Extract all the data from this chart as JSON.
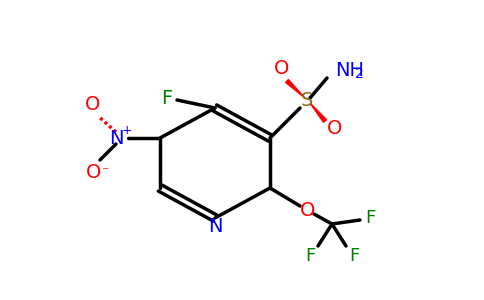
{
  "background_color": "#ffffff",
  "atom_colors": {
    "C": "#000000",
    "N": "#0000ff",
    "O": "#ff0000",
    "F": "#008000",
    "S": "#8b6914",
    "H": "#000000"
  },
  "bond_color": "#000000",
  "bond_width": 2.5,
  "figsize": [
    4.84,
    3.0
  ],
  "dpi": 100
}
